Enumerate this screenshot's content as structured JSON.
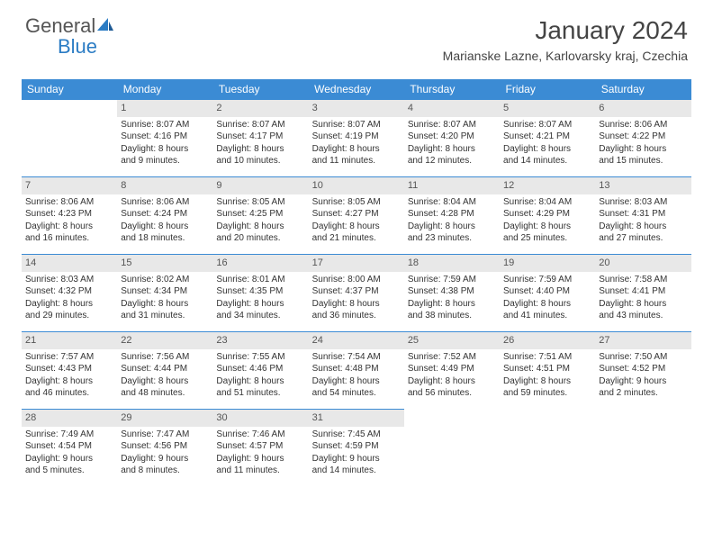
{
  "brand": {
    "word1": "General",
    "word2": "Blue"
  },
  "title": "January 2024",
  "subtitle": "Marianske Lazne, Karlovarsky kraj, Czechia",
  "colors": {
    "header_bg": "#3b8bd4",
    "header_fg": "#ffffff",
    "daynum_bg": "#e8e8e8",
    "border": "#3b8bd4",
    "brand_blue": "#2b7cc4",
    "text": "#333333",
    "page_bg": "#ffffff"
  },
  "days_of_week": [
    "Sunday",
    "Monday",
    "Tuesday",
    "Wednesday",
    "Thursday",
    "Friday",
    "Saturday"
  ],
  "weeks": [
    [
      {
        "n": "",
        "sr": "",
        "ss": "",
        "dl1": "",
        "dl2": ""
      },
      {
        "n": "1",
        "sr": "Sunrise: 8:07 AM",
        "ss": "Sunset: 4:16 PM",
        "dl1": "Daylight: 8 hours",
        "dl2": "and 9 minutes."
      },
      {
        "n": "2",
        "sr": "Sunrise: 8:07 AM",
        "ss": "Sunset: 4:17 PM",
        "dl1": "Daylight: 8 hours",
        "dl2": "and 10 minutes."
      },
      {
        "n": "3",
        "sr": "Sunrise: 8:07 AM",
        "ss": "Sunset: 4:19 PM",
        "dl1": "Daylight: 8 hours",
        "dl2": "and 11 minutes."
      },
      {
        "n": "4",
        "sr": "Sunrise: 8:07 AM",
        "ss": "Sunset: 4:20 PM",
        "dl1": "Daylight: 8 hours",
        "dl2": "and 12 minutes."
      },
      {
        "n": "5",
        "sr": "Sunrise: 8:07 AM",
        "ss": "Sunset: 4:21 PM",
        "dl1": "Daylight: 8 hours",
        "dl2": "and 14 minutes."
      },
      {
        "n": "6",
        "sr": "Sunrise: 8:06 AM",
        "ss": "Sunset: 4:22 PM",
        "dl1": "Daylight: 8 hours",
        "dl2": "and 15 minutes."
      }
    ],
    [
      {
        "n": "7",
        "sr": "Sunrise: 8:06 AM",
        "ss": "Sunset: 4:23 PM",
        "dl1": "Daylight: 8 hours",
        "dl2": "and 16 minutes."
      },
      {
        "n": "8",
        "sr": "Sunrise: 8:06 AM",
        "ss": "Sunset: 4:24 PM",
        "dl1": "Daylight: 8 hours",
        "dl2": "and 18 minutes."
      },
      {
        "n": "9",
        "sr": "Sunrise: 8:05 AM",
        "ss": "Sunset: 4:25 PM",
        "dl1": "Daylight: 8 hours",
        "dl2": "and 20 minutes."
      },
      {
        "n": "10",
        "sr": "Sunrise: 8:05 AM",
        "ss": "Sunset: 4:27 PM",
        "dl1": "Daylight: 8 hours",
        "dl2": "and 21 minutes."
      },
      {
        "n": "11",
        "sr": "Sunrise: 8:04 AM",
        "ss": "Sunset: 4:28 PM",
        "dl1": "Daylight: 8 hours",
        "dl2": "and 23 minutes."
      },
      {
        "n": "12",
        "sr": "Sunrise: 8:04 AM",
        "ss": "Sunset: 4:29 PM",
        "dl1": "Daylight: 8 hours",
        "dl2": "and 25 minutes."
      },
      {
        "n": "13",
        "sr": "Sunrise: 8:03 AM",
        "ss": "Sunset: 4:31 PM",
        "dl1": "Daylight: 8 hours",
        "dl2": "and 27 minutes."
      }
    ],
    [
      {
        "n": "14",
        "sr": "Sunrise: 8:03 AM",
        "ss": "Sunset: 4:32 PM",
        "dl1": "Daylight: 8 hours",
        "dl2": "and 29 minutes."
      },
      {
        "n": "15",
        "sr": "Sunrise: 8:02 AM",
        "ss": "Sunset: 4:34 PM",
        "dl1": "Daylight: 8 hours",
        "dl2": "and 31 minutes."
      },
      {
        "n": "16",
        "sr": "Sunrise: 8:01 AM",
        "ss": "Sunset: 4:35 PM",
        "dl1": "Daylight: 8 hours",
        "dl2": "and 34 minutes."
      },
      {
        "n": "17",
        "sr": "Sunrise: 8:00 AM",
        "ss": "Sunset: 4:37 PM",
        "dl1": "Daylight: 8 hours",
        "dl2": "and 36 minutes."
      },
      {
        "n": "18",
        "sr": "Sunrise: 7:59 AM",
        "ss": "Sunset: 4:38 PM",
        "dl1": "Daylight: 8 hours",
        "dl2": "and 38 minutes."
      },
      {
        "n": "19",
        "sr": "Sunrise: 7:59 AM",
        "ss": "Sunset: 4:40 PM",
        "dl1": "Daylight: 8 hours",
        "dl2": "and 41 minutes."
      },
      {
        "n": "20",
        "sr": "Sunrise: 7:58 AM",
        "ss": "Sunset: 4:41 PM",
        "dl1": "Daylight: 8 hours",
        "dl2": "and 43 minutes."
      }
    ],
    [
      {
        "n": "21",
        "sr": "Sunrise: 7:57 AM",
        "ss": "Sunset: 4:43 PM",
        "dl1": "Daylight: 8 hours",
        "dl2": "and 46 minutes."
      },
      {
        "n": "22",
        "sr": "Sunrise: 7:56 AM",
        "ss": "Sunset: 4:44 PM",
        "dl1": "Daylight: 8 hours",
        "dl2": "and 48 minutes."
      },
      {
        "n": "23",
        "sr": "Sunrise: 7:55 AM",
        "ss": "Sunset: 4:46 PM",
        "dl1": "Daylight: 8 hours",
        "dl2": "and 51 minutes."
      },
      {
        "n": "24",
        "sr": "Sunrise: 7:54 AM",
        "ss": "Sunset: 4:48 PM",
        "dl1": "Daylight: 8 hours",
        "dl2": "and 54 minutes."
      },
      {
        "n": "25",
        "sr": "Sunrise: 7:52 AM",
        "ss": "Sunset: 4:49 PM",
        "dl1": "Daylight: 8 hours",
        "dl2": "and 56 minutes."
      },
      {
        "n": "26",
        "sr": "Sunrise: 7:51 AM",
        "ss": "Sunset: 4:51 PM",
        "dl1": "Daylight: 8 hours",
        "dl2": "and 59 minutes."
      },
      {
        "n": "27",
        "sr": "Sunrise: 7:50 AM",
        "ss": "Sunset: 4:52 PM",
        "dl1": "Daylight: 9 hours",
        "dl2": "and 2 minutes."
      }
    ],
    [
      {
        "n": "28",
        "sr": "Sunrise: 7:49 AM",
        "ss": "Sunset: 4:54 PM",
        "dl1": "Daylight: 9 hours",
        "dl2": "and 5 minutes."
      },
      {
        "n": "29",
        "sr": "Sunrise: 7:47 AM",
        "ss": "Sunset: 4:56 PM",
        "dl1": "Daylight: 9 hours",
        "dl2": "and 8 minutes."
      },
      {
        "n": "30",
        "sr": "Sunrise: 7:46 AM",
        "ss": "Sunset: 4:57 PM",
        "dl1": "Daylight: 9 hours",
        "dl2": "and 11 minutes."
      },
      {
        "n": "31",
        "sr": "Sunrise: 7:45 AM",
        "ss": "Sunset: 4:59 PM",
        "dl1": "Daylight: 9 hours",
        "dl2": "and 14 minutes."
      },
      {
        "n": "",
        "sr": "",
        "ss": "",
        "dl1": "",
        "dl2": ""
      },
      {
        "n": "",
        "sr": "",
        "ss": "",
        "dl1": "",
        "dl2": ""
      },
      {
        "n": "",
        "sr": "",
        "ss": "",
        "dl1": "",
        "dl2": ""
      }
    ]
  ]
}
